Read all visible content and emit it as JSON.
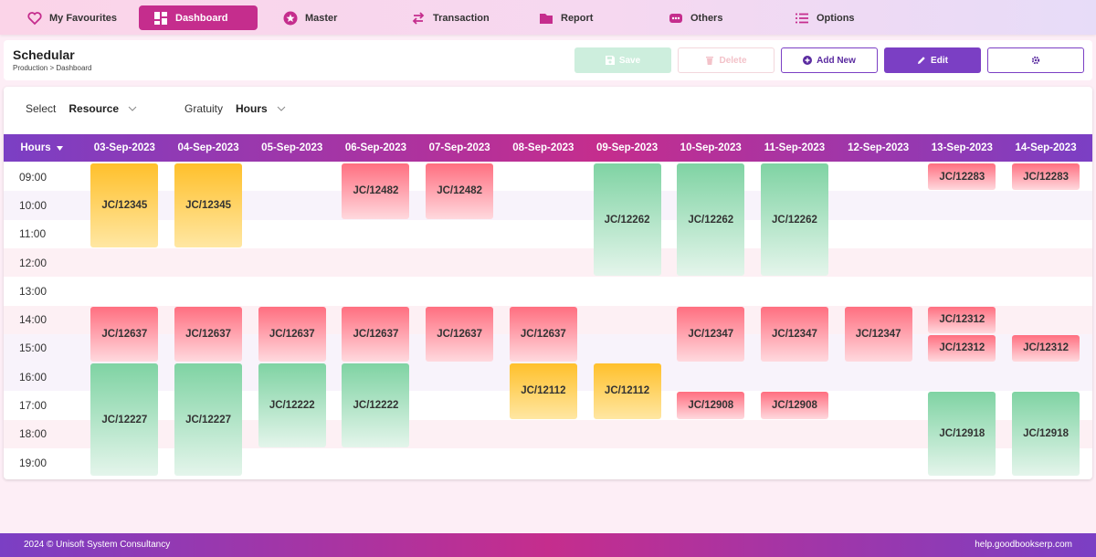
{
  "nav": {
    "items": [
      {
        "label": "My Favourites",
        "icon": "heart-icon"
      },
      {
        "label": "Dashboard",
        "icon": "dashboard-icon",
        "active": true
      },
      {
        "label": "Master",
        "icon": "star-icon"
      },
      {
        "label": "Transaction",
        "icon": "swap-icon"
      },
      {
        "label": "Report",
        "icon": "folder-icon"
      },
      {
        "label": "Others",
        "icon": "more-icon"
      },
      {
        "label": "Options",
        "icon": "list-icon"
      }
    ]
  },
  "header": {
    "title": "Schedular",
    "breadcrumb": "Production > Dashboard",
    "buttons": {
      "save": "Save",
      "delete": "Delete",
      "add_new": "Add New",
      "edit": "Edit"
    }
  },
  "filters": {
    "select_label": "Select",
    "select_value": "Resource",
    "gratuity_label": "Gratuity",
    "gratuity_value": "Hours"
  },
  "grid": {
    "hours_header": "Hours",
    "dates": [
      "03-Sep-2023",
      "04-Sep-2023",
      "05-Sep-2023",
      "06-Sep-2023",
      "07-Sep-2023",
      "08-Sep-2023",
      "09-Sep-2023",
      "10-Sep-2023",
      "11-Sep-2023",
      "12-Sep-2023",
      "13-Sep-2023",
      "14-Sep-2023"
    ],
    "hours": [
      "09:00",
      "10:00",
      "11:00",
      "12:00",
      "13:00",
      "14:00",
      "15:00",
      "16:00",
      "17:00",
      "18:00",
      "19:00"
    ],
    "jobs": [
      {
        "label": "JC/12345",
        "col": 0,
        "start": 0,
        "span": 3,
        "color": "yellow"
      },
      {
        "label": "JC/12345",
        "col": 1,
        "start": 0,
        "span": 3,
        "color": "yellow"
      },
      {
        "label": "JC/12482",
        "col": 3,
        "start": 0,
        "span": 2,
        "color": "red"
      },
      {
        "label": "JC/12482",
        "col": 4,
        "start": 0,
        "span": 2,
        "color": "red"
      },
      {
        "label": "JC/12262",
        "col": 6,
        "start": 0,
        "span": 4,
        "color": "green"
      },
      {
        "label": "JC/12262",
        "col": 7,
        "start": 0,
        "span": 4,
        "color": "green"
      },
      {
        "label": "JC/12262",
        "col": 8,
        "start": 0,
        "span": 4,
        "color": "green"
      },
      {
        "label": "JC/12283",
        "col": 10,
        "start": 0,
        "span": 1,
        "color": "red"
      },
      {
        "label": "JC/12283",
        "col": 11,
        "start": 0,
        "span": 1,
        "color": "red"
      },
      {
        "label": "JC/12637",
        "col": 0,
        "start": 5,
        "span": 2,
        "color": "red"
      },
      {
        "label": "JC/12637",
        "col": 1,
        "start": 5,
        "span": 2,
        "color": "red"
      },
      {
        "label": "JC/12637",
        "col": 2,
        "start": 5,
        "span": 2,
        "color": "red"
      },
      {
        "label": "JC/12637",
        "col": 3,
        "start": 5,
        "span": 2,
        "color": "red"
      },
      {
        "label": "JC/12637",
        "col": 4,
        "start": 5,
        "span": 2,
        "color": "red"
      },
      {
        "label": "JC/12637",
        "col": 5,
        "start": 5,
        "span": 2,
        "color": "red"
      },
      {
        "label": "JC/12347",
        "col": 7,
        "start": 5,
        "span": 2,
        "color": "red"
      },
      {
        "label": "JC/12347",
        "col": 8,
        "start": 5,
        "span": 2,
        "color": "red"
      },
      {
        "label": "JC/12347",
        "col": 9,
        "start": 5,
        "span": 2,
        "color": "red"
      },
      {
        "label": "JC/12312",
        "col": 10,
        "start": 5,
        "span": 1,
        "color": "red"
      },
      {
        "label": "JC/12312",
        "col": 10,
        "start": 6,
        "span": 1,
        "color": "red"
      },
      {
        "label": "JC/12312",
        "col": 11,
        "start": 6,
        "span": 1,
        "color": "red"
      },
      {
        "label": "JC/12227",
        "col": 0,
        "start": 7,
        "span": 4,
        "color": "green"
      },
      {
        "label": "JC/12227",
        "col": 1,
        "start": 7,
        "span": 4,
        "color": "green"
      },
      {
        "label": "JC/12222",
        "col": 2,
        "start": 7,
        "span": 3,
        "color": "green"
      },
      {
        "label": "JC/12222",
        "col": 3,
        "start": 7,
        "span": 3,
        "color": "green"
      },
      {
        "label": "JC/12112",
        "col": 5,
        "start": 7,
        "span": 2,
        "color": "yellow"
      },
      {
        "label": "JC/12112",
        "col": 6,
        "start": 7,
        "span": 2,
        "color": "yellow"
      },
      {
        "label": "JC/12908",
        "col": 7,
        "start": 8,
        "span": 1,
        "color": "red"
      },
      {
        "label": "JC/12908",
        "col": 8,
        "start": 8,
        "span": 1,
        "color": "red"
      },
      {
        "label": "JC/12918",
        "col": 10,
        "start": 8,
        "span": 3,
        "color": "green"
      },
      {
        "label": "JC/12918",
        "col": 11,
        "start": 8,
        "span": 3,
        "color": "green"
      }
    ]
  },
  "footer": {
    "copyright": "2024 © Unisoft System Consultancy",
    "link": "help.goodbookserp.com"
  },
  "colors": {
    "primary": "#7b3fc4",
    "accent": "#c52d8d",
    "job_red": "#ff6f80",
    "job_yellow": "#ffc02b",
    "job_green": "#7fd3a3"
  }
}
